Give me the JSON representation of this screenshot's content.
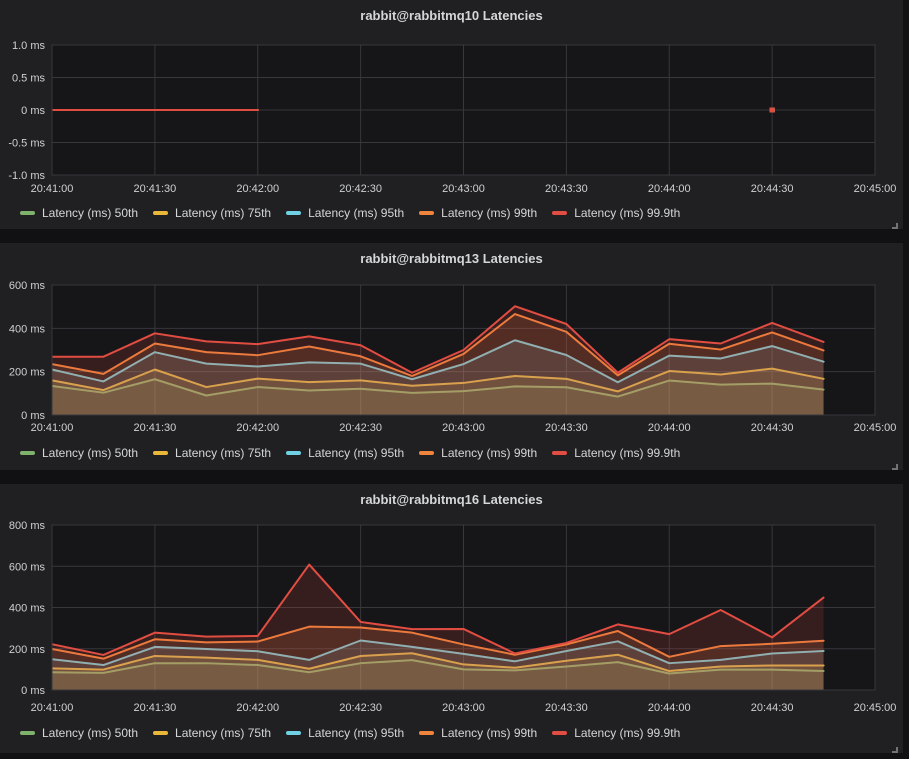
{
  "colors": {
    "page_bg": "#111113",
    "panel_bg": "#202023",
    "plot_bg": "#161619",
    "gridline": "#37373c",
    "text": "#d5d6d8",
    "tick_text": "#cfd0d2",
    "series_green": "#7EB26D",
    "series_yellow": "#EAB839",
    "series_cyan": "#6ED0E0",
    "series_orange": "#EF843C",
    "series_red": "#E24D42"
  },
  "chart_data": [
    {
      "type": "area",
      "title": "rabbit@rabbitmq10 Latencies",
      "xlabel": "",
      "ylabel": "",
      "ylim": [
        -1,
        1
      ],
      "y_tick_values": [
        -1,
        -0.5,
        0,
        0.5,
        1
      ],
      "y_tick_labels": [
        "-1.0 ms",
        "-0.5 ms",
        "0 ms",
        "0.5 ms",
        "1.0 ms"
      ],
      "x_tick_labels": [
        "20:41:00",
        "20:41:30",
        "20:42:00",
        "20:42:30",
        "20:43:00",
        "20:43:30",
        "20:44:00",
        "20:44:30",
        "20:45:00"
      ],
      "x_tick_interval_s": 30,
      "x_range_s": 240,
      "x_offsets_s": [
        0,
        15,
        30,
        45,
        60,
        75,
        90,
        105,
        120,
        135,
        150,
        165,
        180,
        195,
        210,
        225
      ],
      "grid": true,
      "legend_position": "bottom-left",
      "series": [
        {
          "name": "Latency (ms) 50th",
          "color": "#7EB26D",
          "values": [
            0,
            0,
            0,
            0,
            0,
            null,
            null,
            null,
            null,
            null,
            null,
            null,
            null,
            null,
            0,
            null
          ]
        },
        {
          "name": "Latency (ms) 75th",
          "color": "#EAB839",
          "values": [
            0,
            0,
            0,
            0,
            0,
            null,
            null,
            null,
            null,
            null,
            null,
            null,
            null,
            null,
            0,
            null
          ]
        },
        {
          "name": "Latency (ms) 95th",
          "color": "#6ED0E0",
          "values": [
            0,
            0,
            0,
            0,
            0,
            null,
            null,
            null,
            null,
            null,
            null,
            null,
            null,
            null,
            0,
            null
          ]
        },
        {
          "name": "Latency (ms) 99th",
          "color": "#EF843C",
          "values": [
            0,
            0,
            0,
            0,
            0,
            null,
            null,
            null,
            null,
            null,
            null,
            null,
            null,
            null,
            0,
            null
          ]
        },
        {
          "name": "Latency (ms) 99.9th",
          "color": "#E24D42",
          "values": [
            0,
            0,
            0,
            0,
            0,
            null,
            null,
            null,
            null,
            null,
            null,
            null,
            null,
            null,
            0,
            null
          ]
        }
      ]
    },
    {
      "type": "area",
      "title": "rabbit@rabbitmq13 Latencies",
      "xlabel": "",
      "ylabel": "",
      "ylim": [
        0,
        600
      ],
      "y_tick_values": [
        0,
        200,
        400,
        600
      ],
      "y_tick_labels": [
        "0 ms",
        "200 ms",
        "400 ms",
        "600 ms"
      ],
      "x_tick_labels": [
        "20:41:00",
        "20:41:30",
        "20:42:00",
        "20:42:30",
        "20:43:00",
        "20:43:30",
        "20:44:00",
        "20:44:30",
        "20:45:00"
      ],
      "x_tick_interval_s": 30,
      "x_range_s": 240,
      "x_offsets_s": [
        0,
        15,
        30,
        45,
        60,
        75,
        90,
        105,
        120,
        135,
        150,
        165,
        180,
        195,
        210,
        225
      ],
      "grid": true,
      "legend_position": "bottom-left",
      "series": [
        {
          "name": "Latency (ms) 50th",
          "color": "#7EB26D",
          "values": [
            134,
            103,
            165,
            90,
            129,
            113,
            121,
            102,
            110,
            132,
            128,
            85,
            159,
            140,
            145,
            117
          ]
        },
        {
          "name": "Latency (ms) 75th",
          "color": "#EAB839",
          "values": [
            160,
            115,
            210,
            129,
            168,
            152,
            160,
            135,
            148,
            180,
            167,
            109,
            203,
            187,
            214,
            167
          ]
        },
        {
          "name": "Latency (ms) 95th",
          "color": "#6ED0E0",
          "values": [
            210,
            155,
            290,
            237,
            224,
            243,
            237,
            165,
            235,
            345,
            277,
            151,
            274,
            261,
            318,
            246
          ]
        },
        {
          "name": "Latency (ms) 99th",
          "color": "#EF843C",
          "values": [
            235,
            190,
            330,
            290,
            276,
            316,
            271,
            180,
            282,
            466,
            384,
            183,
            329,
            302,
            381,
            298
          ]
        },
        {
          "name": "Latency (ms) 99.9th",
          "color": "#E24D42",
          "values": [
            269,
            269,
            377,
            340,
            327,
            363,
            322,
            195,
            300,
            502,
            420,
            195,
            350,
            330,
            425,
            337
          ]
        }
      ]
    },
    {
      "type": "area",
      "title": "rabbit@rabbitmq16 Latencies",
      "xlabel": "",
      "ylabel": "",
      "ylim": [
        0,
        800
      ],
      "y_tick_values": [
        0,
        200,
        400,
        600,
        800
      ],
      "y_tick_labels": [
        "0 ms",
        "200 ms",
        "400 ms",
        "600 ms",
        "800 ms"
      ],
      "x_tick_labels": [
        "20:41:00",
        "20:41:30",
        "20:42:00",
        "20:42:30",
        "20:43:00",
        "20:43:30",
        "20:44:00",
        "20:44:30",
        "20:45:00"
      ],
      "x_tick_interval_s": 30,
      "x_range_s": 240,
      "x_offsets_s": [
        0,
        15,
        30,
        45,
        60,
        75,
        90,
        105,
        120,
        135,
        150,
        165,
        180,
        195,
        210,
        225
      ],
      "grid": true,
      "legend_position": "bottom-left",
      "series": [
        {
          "name": "Latency (ms) 50th",
          "color": "#7EB26D",
          "values": [
            86,
            83,
            130,
            130,
            121,
            86,
            130,
            145,
            100,
            95,
            114,
            135,
            80,
            99,
            99,
            92
          ]
        },
        {
          "name": "Latency (ms) 75th",
          "color": "#EAB839",
          "values": [
            105,
            99,
            165,
            157,
            146,
            103,
            165,
            178,
            124,
            108,
            142,
            171,
            92,
            114,
            119,
            119
          ]
        },
        {
          "name": "Latency (ms) 95th",
          "color": "#6ED0E0",
          "values": [
            149,
            121,
            209,
            199,
            188,
            146,
            240,
            209,
            175,
            139,
            189,
            236,
            130,
            146,
            177,
            189
          ]
        },
        {
          "name": "Latency (ms) 99th",
          "color": "#EF843C",
          "values": [
            199,
            152,
            246,
            231,
            235,
            307,
            303,
            278,
            221,
            171,
            221,
            286,
            161,
            213,
            224,
            239
          ]
        },
        {
          "name": "Latency (ms) 99.9th",
          "color": "#E24D42",
          "values": [
            222,
            170,
            278,
            259,
            262,
            608,
            330,
            295,
            296,
            177,
            228,
            318,
            271,
            388,
            255,
            448
          ]
        }
      ]
    }
  ]
}
